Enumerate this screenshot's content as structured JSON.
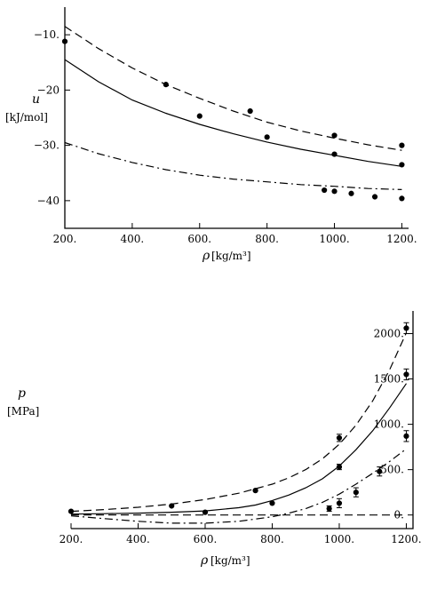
{
  "chart_data": [
    {
      "type": "scatter",
      "ylabel_symbol": "u",
      "ylabel_unit": "[kJ/mol]",
      "xlabel_symbol": "ρ",
      "xlabel_unit": "[kg/m³]",
      "xlim": [
        200,
        1220
      ],
      "ylim": [
        -45,
        -5
      ],
      "xticks": [
        200,
        400,
        600,
        800,
        1000,
        1200
      ],
      "xtick_labels": [
        "200.",
        "400.",
        "600.",
        "800.",
        "1000.",
        "1200."
      ],
      "yticks": [
        -10,
        -20,
        -30,
        -40
      ],
      "ytick_labels": [
        "−10.",
        "−20",
        "−30.",
        "−40"
      ],
      "series": [
        {
          "style": "dashed",
          "x": [
            200,
            300,
            400,
            500,
            600,
            700,
            800,
            900,
            1000,
            1100,
            1200
          ],
          "y": [
            -8.5,
            -12.5,
            -16.0,
            -19.0,
            -21.5,
            -23.8,
            -25.8,
            -27.4,
            -28.7,
            -29.9,
            -30.9
          ]
        },
        {
          "style": "solid",
          "x": [
            200,
            300,
            400,
            500,
            600,
            700,
            800,
            900,
            1000,
            1100,
            1200
          ],
          "y": [
            -14.5,
            -18.5,
            -21.8,
            -24.2,
            -26.2,
            -27.9,
            -29.4,
            -30.7,
            -31.8,
            -32.9,
            -33.8
          ]
        },
        {
          "style": "dashdot",
          "x": [
            200,
            300,
            400,
            500,
            600,
            700,
            800,
            900,
            1000,
            1100,
            1200
          ],
          "y": [
            -29.5,
            -31.5,
            -33.1,
            -34.4,
            -35.4,
            -36.1,
            -36.6,
            -37.1,
            -37.4,
            -37.8,
            -38.0
          ]
        },
        {
          "style": "points",
          "x": [
            200,
            500,
            600,
            750,
            800,
            1000,
            1000,
            1200,
            1200
          ],
          "y": [
            -11.2,
            -19.0,
            -24.7,
            -23.8,
            -28.5,
            -28.2,
            -31.6,
            -30.0,
            -33.5
          ]
        },
        {
          "style": "points",
          "x": [
            970,
            1000,
            1050,
            1120,
            1200
          ],
          "y": [
            -38.1,
            -38.3,
            -38.7,
            -39.3,
            -39.6
          ]
        }
      ]
    },
    {
      "type": "scatter",
      "ylabel_symbol": "p",
      "ylabel_unit": "[MPa]",
      "xlabel_symbol": "ρ",
      "xlabel_unit": "[kg/m³]",
      "xlim": [
        200,
        1220
      ],
      "ylim": [
        -150,
        2250
      ],
      "xticks": [
        200,
        400,
        600,
        800,
        1000,
        1200
      ],
      "xtick_labels": [
        "200.",
        "400.",
        "600.",
        "800.",
        "1000.",
        "1200."
      ],
      "yticks": [
        0,
        500,
        1000,
        1500,
        2000
      ],
      "ytick_labels": [
        "0.",
        "500.",
        "1000.",
        "1500.",
        "2000."
      ],
      "series": [
        {
          "style": "dashed",
          "x": [
            200,
            300,
            400,
            500,
            600,
            700,
            800,
            850,
            900,
            950,
            1000,
            1050,
            1100,
            1150,
            1200
          ],
          "y": [
            40,
            60,
            85,
            120,
            170,
            240,
            340,
            410,
            500,
            620,
            780,
            990,
            1260,
            1600,
            2010
          ]
        },
        {
          "style": "solid",
          "x": [
            200,
            300,
            400,
            500,
            600,
            700,
            750,
            800,
            850,
            900,
            950,
            1000,
            1050,
            1100,
            1150,
            1200
          ],
          "y": [
            10,
            15,
            20,
            30,
            45,
            80,
            110,
            160,
            220,
            300,
            400,
            540,
            720,
            930,
            1180,
            1450
          ]
        },
        {
          "style": "dashdot",
          "x": [
            200,
            300,
            400,
            500,
            600,
            700,
            800,
            850,
            900,
            950,
            1000,
            1050,
            1100,
            1150,
            1200
          ],
          "y": [
            -10,
            -40,
            -70,
            -90,
            -90,
            -70,
            -20,
            20,
            70,
            140,
            230,
            340,
            460,
            590,
            730
          ]
        },
        {
          "style": "dashed",
          "x": [
            200,
            1200
          ],
          "y": [
            0,
            0
          ]
        },
        {
          "style": "points",
          "x": [
            200,
            500,
            600,
            750,
            800,
            970,
            1000,
            1000,
            1050,
            1120,
            1200,
            1200,
            1200
          ],
          "y": [
            40,
            100,
            30,
            270,
            130,
            70,
            850,
            530,
            250,
            480,
            2060,
            1550,
            870
          ],
          "err": [
            0,
            0,
            0,
            0,
            0,
            30,
            40,
            30,
            50,
            50,
            60,
            60,
            60
          ]
        },
        {
          "style": "points",
          "x": [
            1000
          ],
          "y": [
            130
          ],
          "err": [
            50
          ]
        }
      ]
    }
  ]
}
